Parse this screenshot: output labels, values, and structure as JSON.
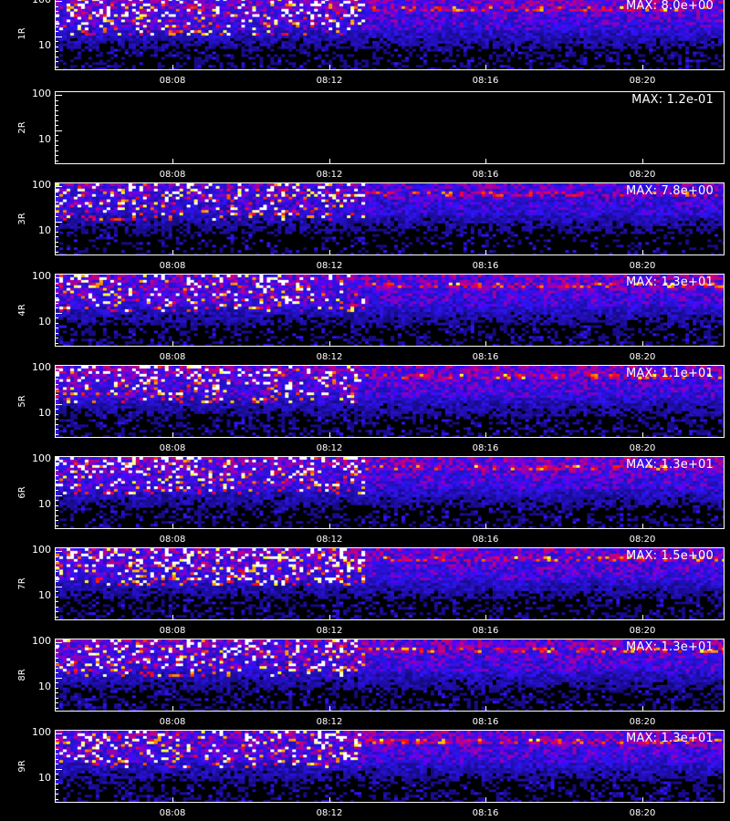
{
  "chart_data": {
    "type": "heatmap",
    "x_ticks": [
      "08:08",
      "08:12",
      "08:16",
      "08:20"
    ],
    "y_ticks": [
      "100",
      "10"
    ],
    "y_scale": "log",
    "colormap": [
      "#000000",
      "#1010ff",
      "#ff0000",
      "#ffff00",
      "#ffffff"
    ],
    "panels": [
      {
        "label": "1R",
        "max_label": "MAX: 8.0e+00",
        "activity": "high"
      },
      {
        "label": "2R",
        "max_label": "MAX: 1.2e-01",
        "activity": "none"
      },
      {
        "label": "3R",
        "max_label": "MAX: 7.8e+00",
        "activity": "medium"
      },
      {
        "label": "4R",
        "max_label": "MAX: 1.3e+01",
        "activity": "high"
      },
      {
        "label": "5R",
        "max_label": "MAX: 1.1e+01",
        "activity": "high"
      },
      {
        "label": "6R",
        "max_label": "MAX: 1.3e+01",
        "activity": "high"
      },
      {
        "label": "7R",
        "max_label": "MAX: 1.5e+00",
        "activity": "speckle"
      },
      {
        "label": "8R",
        "max_label": "MAX: 1.3e+01",
        "activity": "high"
      },
      {
        "label": "9R",
        "max_label": "MAX: 1.3e+01",
        "activity": "high"
      }
    ]
  }
}
